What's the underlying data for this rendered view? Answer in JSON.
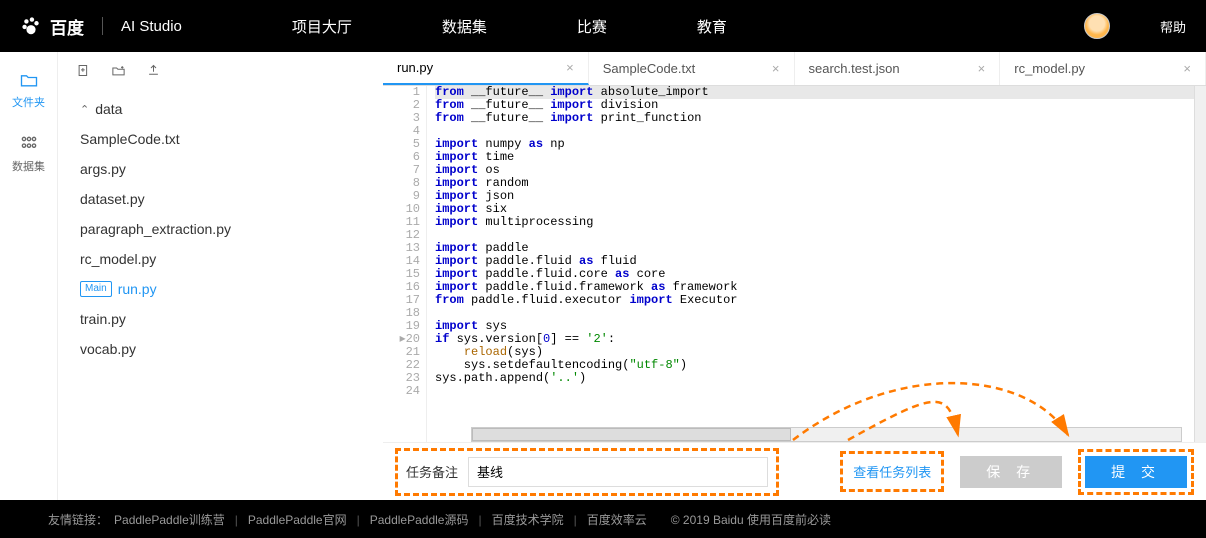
{
  "topnav": {
    "brand": "百度",
    "studio": "AI Studio",
    "links": [
      "项目大厅",
      "数据集",
      "比赛",
      "教育"
    ],
    "help": "帮助"
  },
  "iconbar": {
    "folder": "文件夹",
    "dataset": "数据集"
  },
  "files": {
    "folder": "data",
    "items": [
      "SampleCode.txt",
      "args.py",
      "dataset.py",
      "paragraph_extraction.py",
      "rc_model.py",
      "run.py",
      "train.py",
      "vocab.py"
    ],
    "active_index": 5,
    "main_badge": "Main"
  },
  "tabs": {
    "items": [
      "run.py",
      "SampleCode.txt",
      "search.test.json",
      "rc_model.py"
    ],
    "active_index": 0
  },
  "code": {
    "lines": [
      {
        "n": 1,
        "hl": true,
        "t": [
          {
            "c": "kw",
            "v": "from"
          },
          {
            "v": " __future__ "
          },
          {
            "c": "kw",
            "v": "import"
          },
          {
            "v": " absolute_import"
          }
        ]
      },
      {
        "n": 2,
        "t": [
          {
            "c": "kw",
            "v": "from"
          },
          {
            "v": " __future__ "
          },
          {
            "c": "kw",
            "v": "import"
          },
          {
            "v": " division"
          }
        ]
      },
      {
        "n": 3,
        "t": [
          {
            "c": "kw",
            "v": "from"
          },
          {
            "v": " __future__ "
          },
          {
            "c": "kw",
            "v": "import"
          },
          {
            "v": " print_function"
          }
        ]
      },
      {
        "n": 4,
        "t": []
      },
      {
        "n": 5,
        "t": [
          {
            "c": "kw",
            "v": "import"
          },
          {
            "v": " numpy "
          },
          {
            "c": "kw",
            "v": "as"
          },
          {
            "v": " np"
          }
        ]
      },
      {
        "n": 6,
        "t": [
          {
            "c": "kw",
            "v": "import"
          },
          {
            "v": " time"
          }
        ]
      },
      {
        "n": 7,
        "t": [
          {
            "c": "kw",
            "v": "import"
          },
          {
            "v": " os"
          }
        ]
      },
      {
        "n": 8,
        "t": [
          {
            "c": "kw",
            "v": "import"
          },
          {
            "v": " random"
          }
        ]
      },
      {
        "n": 9,
        "t": [
          {
            "c": "kw",
            "v": "import"
          },
          {
            "v": " json"
          }
        ]
      },
      {
        "n": 10,
        "t": [
          {
            "c": "kw",
            "v": "import"
          },
          {
            "v": " six"
          }
        ]
      },
      {
        "n": 11,
        "t": [
          {
            "c": "kw",
            "v": "import"
          },
          {
            "v": " multiprocessing"
          }
        ]
      },
      {
        "n": 12,
        "t": []
      },
      {
        "n": 13,
        "t": [
          {
            "c": "kw",
            "v": "import"
          },
          {
            "v": " paddle"
          }
        ]
      },
      {
        "n": 14,
        "t": [
          {
            "c": "kw",
            "v": "import"
          },
          {
            "v": " paddle.fluid "
          },
          {
            "c": "kw",
            "v": "as"
          },
          {
            "v": " fluid"
          }
        ]
      },
      {
        "n": 15,
        "t": [
          {
            "c": "kw",
            "v": "import"
          },
          {
            "v": " paddle.fluid.core "
          },
          {
            "c": "kw",
            "v": "as"
          },
          {
            "v": " core"
          }
        ]
      },
      {
        "n": 16,
        "t": [
          {
            "c": "kw",
            "v": "import"
          },
          {
            "v": " paddle.fluid.framework "
          },
          {
            "c": "kw",
            "v": "as"
          },
          {
            "v": " framework"
          }
        ]
      },
      {
        "n": 17,
        "t": [
          {
            "c": "kw",
            "v": "from"
          },
          {
            "v": " paddle.fluid.executor "
          },
          {
            "c": "kw",
            "v": "import"
          },
          {
            "v": " Executor"
          }
        ]
      },
      {
        "n": 18,
        "t": []
      },
      {
        "n": 19,
        "t": [
          {
            "c": "kw",
            "v": "import"
          },
          {
            "v": " sys"
          }
        ]
      },
      {
        "n": 20,
        "warn": true,
        "t": [
          {
            "c": "kw",
            "v": "if"
          },
          {
            "v": " sys.version["
          },
          {
            "c": "num",
            "v": "0"
          },
          {
            "v": "] == "
          },
          {
            "c": "str",
            "v": "'2'"
          },
          {
            "v": ":"
          }
        ]
      },
      {
        "n": 21,
        "t": [
          {
            "v": "    "
          },
          {
            "c": "brown",
            "v": "reload"
          },
          {
            "v": "(sys)"
          }
        ]
      },
      {
        "n": 22,
        "t": [
          {
            "v": "    sys.setdefaultencoding("
          },
          {
            "c": "str",
            "v": "\"utf-8\""
          },
          {
            "v": ")"
          }
        ]
      },
      {
        "n": 23,
        "t": [
          {
            "v": "sys.path.append("
          },
          {
            "c": "str",
            "v": "'..'"
          },
          {
            "v": ")"
          }
        ]
      },
      {
        "n": 24,
        "t": []
      }
    ]
  },
  "actionbar": {
    "label": "任务备注",
    "value": "基线",
    "viewlist": "查看任务列表",
    "save": "保 存",
    "submit": "提 交"
  },
  "arrow": {
    "color": "#ff7a00"
  },
  "footer": {
    "label": "友情链接：",
    "links": [
      "PaddlePaddle训练营",
      "PaddlePaddle官网",
      "PaddlePaddle源码",
      "百度技术学院",
      "百度效率云"
    ],
    "copyright": "© 2019 Baidu 使用百度前必读"
  }
}
